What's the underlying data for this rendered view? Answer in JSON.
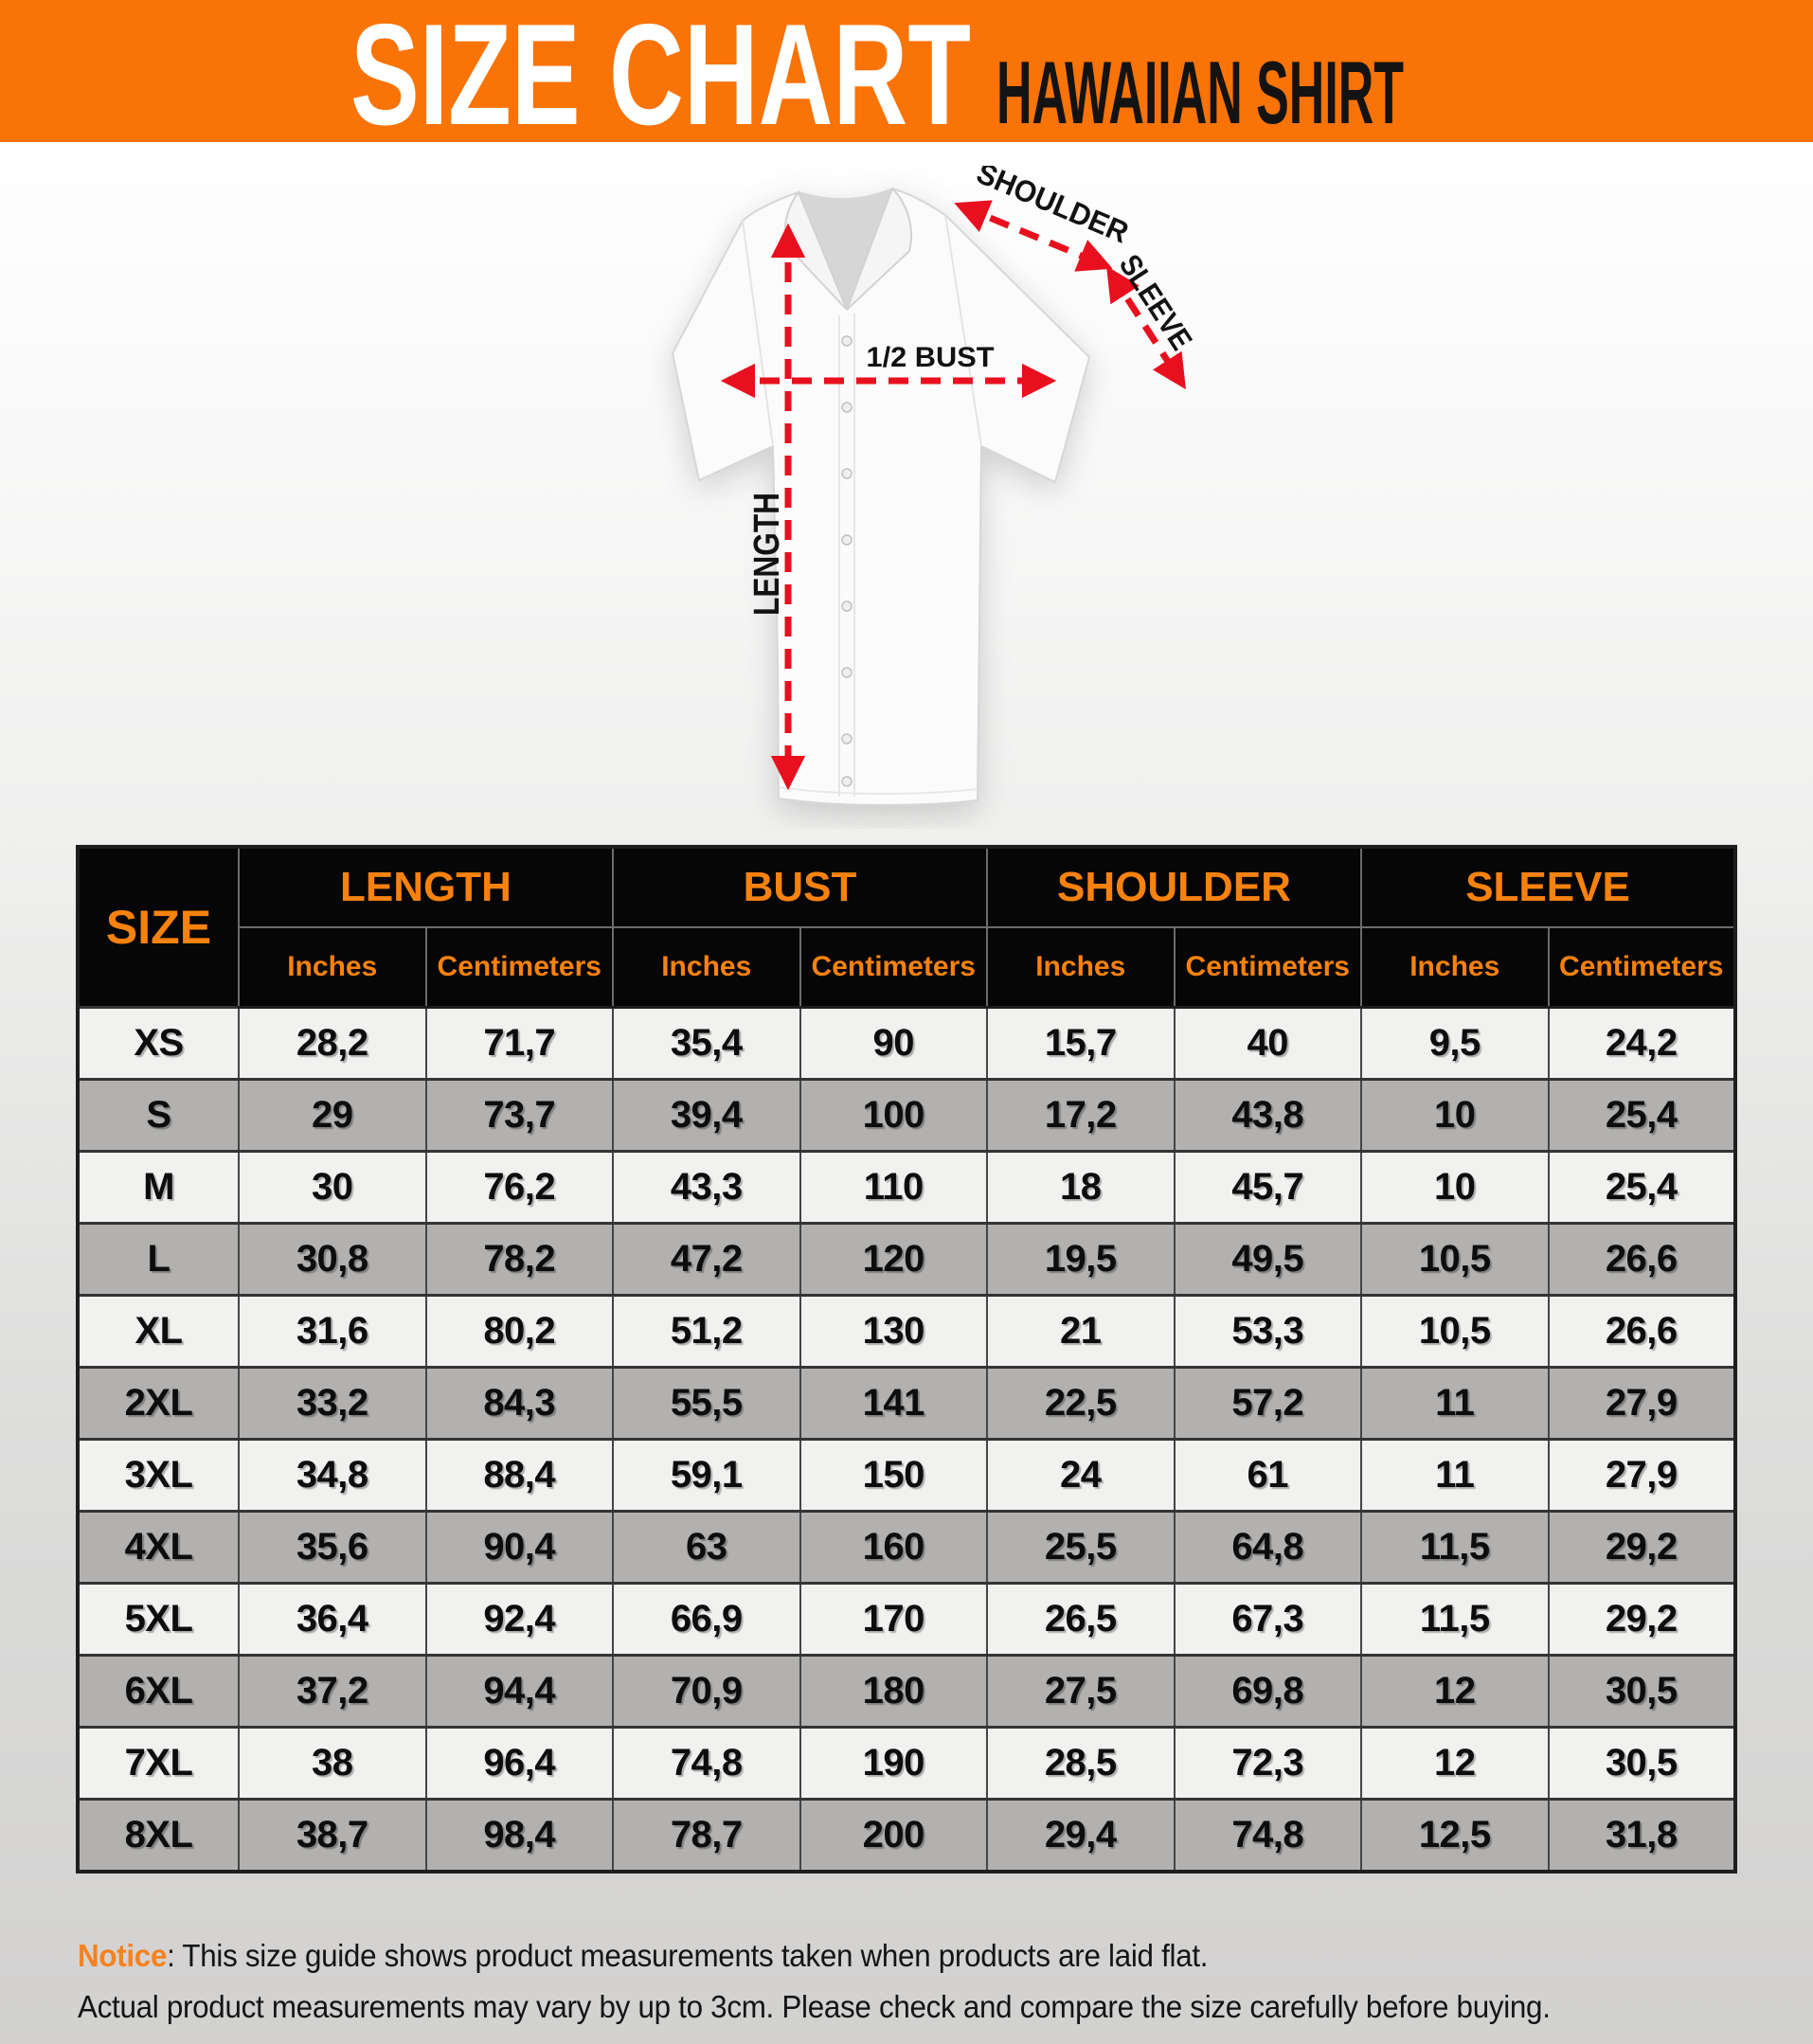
{
  "banner": {
    "title": "SIZE CHART",
    "subtitle": "HAWAIIAN SHIRT"
  },
  "diagram": {
    "labels": {
      "shoulder": "SHOULDER",
      "sleeve": "SLEEVE",
      "bust": "1/2 BUST",
      "length": "LENGTH"
    }
  },
  "table": {
    "size_header": "SIZE",
    "groups": [
      "LENGTH",
      "BUST",
      "SHOULDER",
      "SLEEVE"
    ],
    "unit_headers": [
      "Inches",
      "Centimeters"
    ],
    "rows": [
      {
        "size": "XS",
        "values": [
          "28,2",
          "71,7",
          "35,4",
          "90",
          "15,7",
          "40",
          "9,5",
          "24,2"
        ]
      },
      {
        "size": "S",
        "values": [
          "29",
          "73,7",
          "39,4",
          "100",
          "17,2",
          "43,8",
          "10",
          "25,4"
        ]
      },
      {
        "size": "M",
        "values": [
          "30",
          "76,2",
          "43,3",
          "110",
          "18",
          "45,7",
          "10",
          "25,4"
        ]
      },
      {
        "size": "L",
        "values": [
          "30,8",
          "78,2",
          "47,2",
          "120",
          "19,5",
          "49,5",
          "10,5",
          "26,6"
        ]
      },
      {
        "size": "XL",
        "values": [
          "31,6",
          "80,2",
          "51,2",
          "130",
          "21",
          "53,3",
          "10,5",
          "26,6"
        ]
      },
      {
        "size": "2XL",
        "values": [
          "33,2",
          "84,3",
          "55,5",
          "141",
          "22,5",
          "57,2",
          "11",
          "27,9"
        ]
      },
      {
        "size": "3XL",
        "values": [
          "34,8",
          "88,4",
          "59,1",
          "150",
          "24",
          "61",
          "11",
          "27,9"
        ]
      },
      {
        "size": "4XL",
        "values": [
          "35,6",
          "90,4",
          "63",
          "160",
          "25,5",
          "64,8",
          "11,5",
          "29,2"
        ]
      },
      {
        "size": "5XL",
        "values": [
          "36,4",
          "92,4",
          "66,9",
          "170",
          "26,5",
          "67,3",
          "11,5",
          "29,2"
        ]
      },
      {
        "size": "6XL",
        "values": [
          "37,2",
          "94,4",
          "70,9",
          "180",
          "27,5",
          "69,8",
          "12",
          "30,5"
        ]
      },
      {
        "size": "7XL",
        "values": [
          "38",
          "96,4",
          "74,8",
          "190",
          "28,5",
          "72,3",
          "12",
          "30,5"
        ]
      },
      {
        "size": "8XL",
        "values": [
          "38,7",
          "98,4",
          "78,7",
          "200",
          "29,4",
          "74,8",
          "12,5",
          "31,8"
        ]
      }
    ]
  },
  "notice": {
    "label": "Notice",
    "line1_rest": ": This size guide shows product measurements taken when products are laid flat.",
    "line2": "Actual product measurements may vary by up to 3cm. Please check and compare the size carefully before buying."
  },
  "colors": {
    "banner_orange": "#F97306",
    "header_text_orange": "#F8820E",
    "arrow_red": "#E8101E",
    "header_bg": "#060606",
    "row_light": "#F1F1F0",
    "row_gray": "#B2B1B0"
  }
}
